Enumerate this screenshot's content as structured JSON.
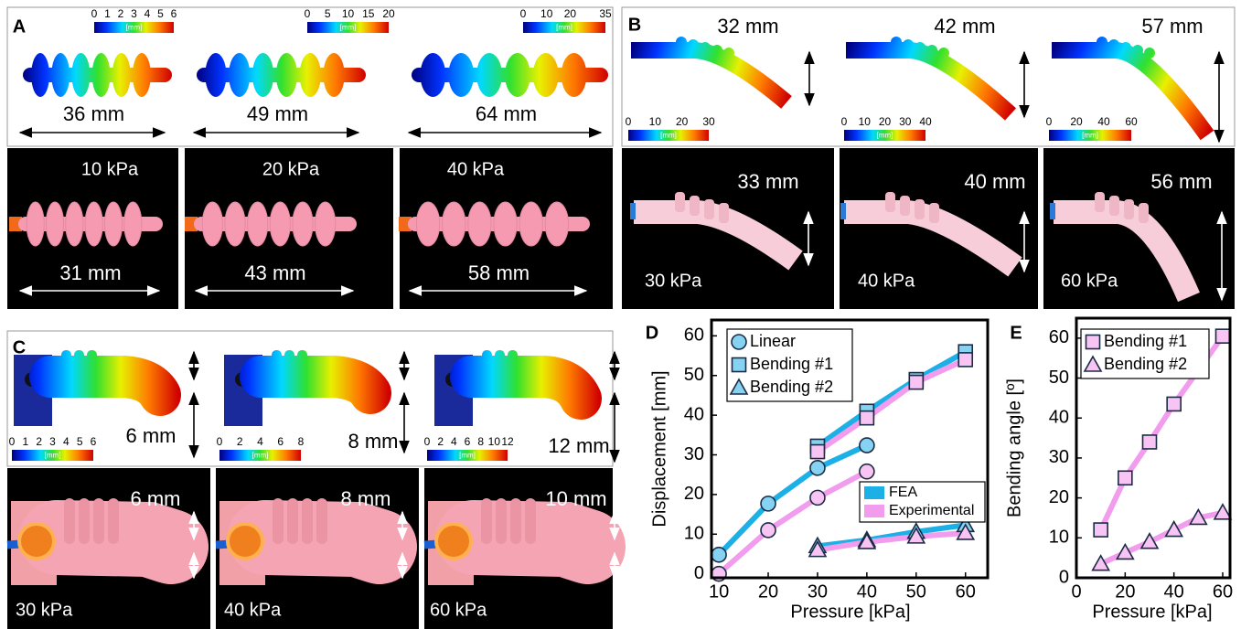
{
  "panel_a": {
    "label": "A",
    "colorbar_unit": "[mm]",
    "colorbars": [
      [
        0,
        1,
        2,
        3,
        4,
        5,
        6
      ],
      [
        0,
        5,
        10,
        15,
        20
      ],
      [
        0,
        10,
        20,
        35
      ]
    ],
    "fea_dimensions": [
      "36 mm",
      "49 mm",
      "64 mm"
    ],
    "pressures": [
      "10 kPa",
      "20 kPa",
      "40 kPa"
    ],
    "experimental_dimensions": [
      "31 mm",
      "43 mm",
      "58 mm"
    ]
  },
  "panel_b": {
    "label": "B",
    "colorbar_unit": "[mm]",
    "colorbars": [
      [
        0,
        10,
        20,
        30
      ],
      [
        0,
        10,
        20,
        30,
        40
      ],
      [
        0,
        20,
        40,
        60
      ]
    ],
    "fea_dimensions": [
      "32 mm",
      "42 mm",
      "57 mm"
    ],
    "pressures": [
      "30 kPa",
      "40 kPa",
      "60 kPa"
    ],
    "experimental_dimensions": [
      "33 mm",
      "40 mm",
      "56 mm"
    ]
  },
  "panel_c": {
    "label": "C",
    "colorbar_unit": "[mm]",
    "colorbars": [
      [
        0,
        1,
        2,
        3,
        4,
        5,
        6
      ],
      [
        0,
        2,
        4,
        6,
        8
      ],
      [
        0,
        2,
        4,
        6,
        8,
        10,
        12
      ]
    ],
    "fea_dimensions": [
      "6 mm",
      "8 mm",
      "12 mm"
    ],
    "pressures": [
      "30 kPa",
      "40 kPa",
      "60 kPa"
    ],
    "experimental_dimensions": [
      "6 mm",
      "8 mm",
      "10 mm"
    ]
  },
  "chart_data": [
    {
      "type": "line",
      "label": "D",
      "xlabel": "Pressure [kPa]",
      "ylabel": "Displacement [mm]",
      "x": [
        10,
        20,
        30,
        40,
        50,
        60
      ],
      "xlim": [
        8.5,
        64.5
      ],
      "ylim": [
        -1,
        64
      ],
      "xticks": [
        10,
        20,
        30,
        40,
        50,
        60
      ],
      "yticks": [
        0,
        10,
        20,
        30,
        40,
        50,
        60
      ],
      "marker_edge_color": "#1b2b45",
      "models": [
        {
          "name": "FEA",
          "color": "#1cb0e6",
          "marker_fill": "#86d2f2"
        },
        {
          "name": "Experimental",
          "color": "#f29ced",
          "marker_fill": "#f8c4f4"
        }
      ],
      "series": [
        {
          "name": "Linear",
          "marker": "circle",
          "values": [
            [
              4.8,
              17.7,
              26.7,
              32.4,
              null,
              null
            ],
            [
              0,
              11,
              19.2,
              25.8,
              null,
              null
            ]
          ]
        },
        {
          "name": "Bending #1",
          "marker": "square",
          "values": [
            [
              null,
              null,
              32.2,
              41,
              49,
              56
            ],
            [
              null,
              null,
              30.8,
              39.3,
              48.3,
              54
            ]
          ]
        },
        {
          "name": "Bending #2",
          "marker": "triangle",
          "values": [
            [
              null,
              null,
              7,
              8.5,
              10.6,
              12.3
            ],
            [
              null,
              null,
              6,
              8,
              9.4,
              10.3
            ]
          ]
        }
      ]
    },
    {
      "type": "line",
      "label": "E",
      "xlabel": "Pressure [kPa]",
      "ylabel": "Bending angle [º]",
      "xlim": [
        0,
        63
      ],
      "ylim": [
        0,
        65
      ],
      "xticks": [
        0,
        20,
        40,
        60
      ],
      "yticks": [
        0,
        10,
        20,
        30,
        40,
        50,
        60
      ],
      "color": "#f29ced",
      "marker_fill": "#f8c4f4",
      "marker_edge_color": "#1b2b45",
      "series": [
        {
          "name": "Bending #1",
          "marker": "square",
          "x": [
            10,
            20,
            30,
            40,
            60
          ],
          "values": [
            12,
            25,
            34,
            43.5,
            60.5
          ]
        },
        {
          "name": "Bending #2",
          "marker": "triangle",
          "x": [
            10,
            20,
            30,
            40,
            50,
            60
          ],
          "values": [
            3.5,
            6.3,
            9,
            12,
            15,
            16.3
          ]
        }
      ]
    }
  ]
}
